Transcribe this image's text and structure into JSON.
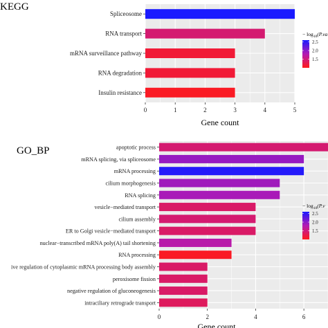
{
  "chart_data": [
    {
      "type": "bar",
      "orientation": "horizontal",
      "title": "KEGG",
      "xlabel": "Gene count",
      "ylabel": "",
      "xlim": [
        0,
        5
      ],
      "x_ticks": [
        "0",
        "1",
        "2",
        "3",
        "4",
        "5"
      ],
      "grid": true,
      "categories": [
        "Spliceosome",
        "RNA transport",
        "mRNA surveillance pathway",
        "RNA degradation",
        "Insulin resistance"
      ],
      "values": [
        5,
        4,
        3,
        3,
        3
      ],
      "neg_log10_p": [
        2.6,
        1.45,
        1.15,
        1.15,
        1.05
      ],
      "legend": {
        "title_prefix": "− log",
        "title_sub": "10",
        "title_suffix": "(P.va",
        "ticks": [
          "2.5",
          "2.0",
          "1.5"
        ],
        "range": [
          1.0,
          2.6
        ],
        "placement": "right",
        "color_low": "#ff1a1a",
        "color_high": "#1a1aff"
      }
    },
    {
      "type": "bar",
      "orientation": "horizontal",
      "title": "GO_BP",
      "xlabel": "Gene count",
      "ylabel": "",
      "xlim": [
        0,
        7
      ],
      "x_ticks": [
        "0",
        "2",
        "4",
        "6"
      ],
      "x_tick_values": [
        0,
        2,
        4,
        6
      ],
      "grid": true,
      "categories": [
        "apoptotic process",
        "mRNA splicing, via spliceosome",
        "mRNA processing",
        "cilium morphogenesis",
        "RNA splicing",
        "vesicle−mediated transport",
        "cilium assembly",
        "ER to Golgi vesicle−mediated transport",
        "nuclear−transcribed mRNA poly(A) tail shortening",
        "RNA processing",
        "ive regulation of cytoplasmic mRNA processing body assembly",
        "peroxisome fission",
        "negative regulation of gluconeogenesis",
        "intraciliary retrograde transport"
      ],
      "values": [
        7,
        6,
        6,
        5,
        5,
        4,
        4,
        4,
        3,
        3,
        2,
        2,
        2,
        2
      ],
      "neg_log10_p": [
        1.45,
        1.95,
        2.55,
        1.9,
        1.85,
        1.4,
        1.45,
        1.4,
        1.75,
        1.05,
        1.4,
        1.4,
        1.4,
        1.35
      ],
      "legend": {
        "title_prefix": "− log",
        "title_sub": "10",
        "title_suffix": "(P.v",
        "ticks": [
          "2.5",
          "2.0",
          "1.5"
        ],
        "range": [
          1.0,
          2.6
        ],
        "placement": "right",
        "color_low": "#ff1a1a",
        "color_high": "#1a1aff"
      }
    }
  ]
}
